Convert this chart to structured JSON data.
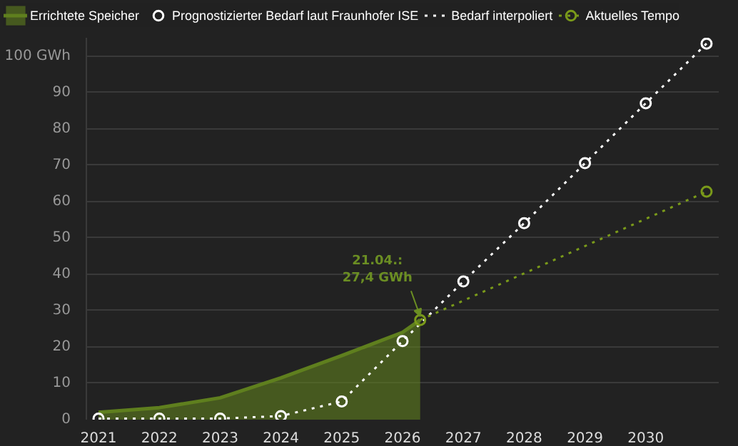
{
  "chart_data": {
    "type": "line",
    "xlim": [
      2020.8,
      2031.2
    ],
    "ylim": [
      0,
      105
    ],
    "xticks": [
      2021,
      2022,
      2023,
      2024,
      2025,
      2026,
      2027,
      2028,
      2029,
      2030
    ],
    "yticks": [
      0,
      10,
      20,
      30,
      40,
      50,
      60,
      70,
      80,
      90,
      {
        "value": 100,
        "label": "100 GWh"
      }
    ],
    "grid": "y",
    "legend": "top",
    "series": [
      {
        "name": "Errichtete Speicher",
        "type": "area",
        "color": "#5f7f1e",
        "x": [
          2021,
          2022,
          2023,
          2024,
          2025,
          2026,
          2026.29
        ],
        "values": [
          2,
          3.3,
          6,
          11.5,
          17.6,
          24,
          27.4
        ]
      },
      {
        "name": "Prognostizierter Bedarf laut Fraunhofer ISE",
        "type": "scatter",
        "marker": "circle",
        "color": "#ffffff",
        "x": [
          2021,
          2022,
          2023,
          2024,
          2025,
          2026,
          2027,
          2028,
          2029,
          2030,
          2031
        ],
        "values": [
          0.3,
          0.3,
          0.3,
          1,
          5,
          21.6,
          38,
          54,
          70.5,
          87,
          103.4
        ]
      },
      {
        "name": "Bedarf interpoliert",
        "line_style": "dotted",
        "color": "#ffffff",
        "x": [
          2021,
          2022,
          2023,
          2024,
          2025,
          2026,
          2027,
          2028,
          2029,
          2030,
          2031
        ],
        "values": [
          0.3,
          0.3,
          0.3,
          1,
          5,
          21.6,
          38,
          54,
          70.5,
          87,
          103.4
        ]
      },
      {
        "name": "Aktuelles Tempo",
        "line_style": "dotted",
        "marker": "circle",
        "color": "#7a9a1a",
        "x": [
          2026.29,
          2031
        ],
        "values": [
          27.4,
          62.7
        ]
      }
    ],
    "annotations": [
      {
        "text": "21.04.:\n27,4 GWh",
        "x": 2026.29,
        "y": 27.4
      }
    ]
  }
}
